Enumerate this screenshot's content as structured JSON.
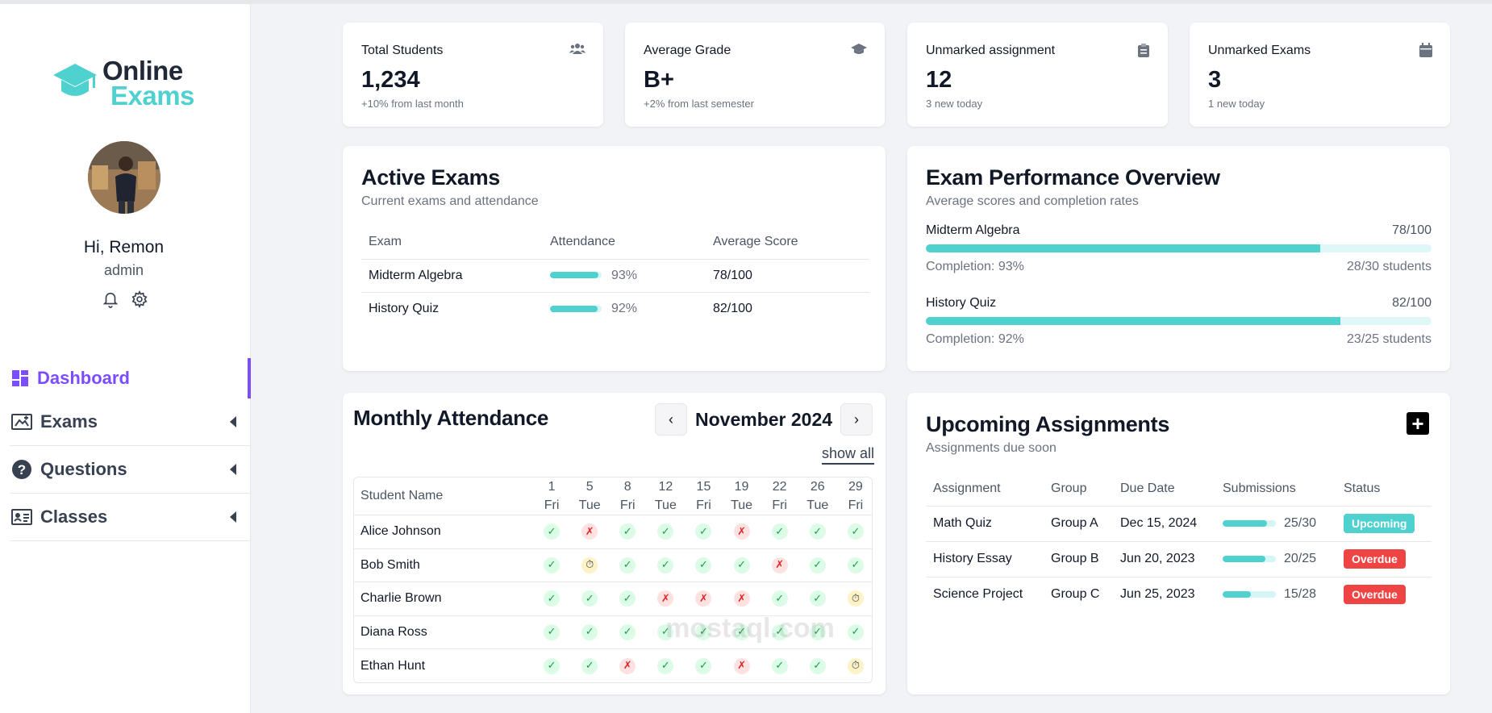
{
  "logo": {
    "line1": "Online",
    "line2": "Exams"
  },
  "user": {
    "greeting": "Hi, Remon",
    "role": "admin"
  },
  "nav": [
    {
      "label": "Dashboard",
      "icon": "dashboard-icon"
    },
    {
      "label": "Exams",
      "icon": "exams-icon"
    },
    {
      "label": "Questions",
      "icon": "question-icon"
    },
    {
      "label": "Classes",
      "icon": "classes-icon"
    }
  ],
  "stats": [
    {
      "title": "Total Students",
      "value": "1,234",
      "sub": "+10% from last month",
      "icon": "users-icon"
    },
    {
      "title": "Average Grade",
      "value": "B+",
      "sub": "+2% from last semester",
      "icon": "graduation-cap-icon"
    },
    {
      "title": "Unmarked assignment",
      "value": "12",
      "sub": "3 new today",
      "icon": "clipboard-icon"
    },
    {
      "title": "Unmarked Exams",
      "value": "3",
      "sub": "1 new today",
      "icon": "calendar-icon"
    }
  ],
  "active_exams": {
    "title": "Active Exams",
    "subtitle": "Current exams and attendance",
    "headers": [
      "Exam",
      "Attendance",
      "Average Score"
    ],
    "rows": [
      {
        "exam": "Midterm Algebra",
        "attendance": 93,
        "attendance_label": "93%",
        "score": "78/100"
      },
      {
        "exam": "History Quiz",
        "attendance": 92,
        "attendance_label": "92%",
        "score": "82/100"
      }
    ]
  },
  "performance": {
    "title": "Exam Performance Overview",
    "subtitle": "Average scores and completion rates",
    "rows": [
      {
        "name": "Midterm Algebra",
        "score": "78/100",
        "score_pct": 78,
        "completion": "Completion: 93%",
        "students": "28/30 students"
      },
      {
        "name": "History Quiz",
        "score": "82/100",
        "score_pct": 82,
        "completion": "Completion: 92%",
        "students": "23/25 students"
      }
    ]
  },
  "attendance": {
    "title": "Monthly Attendance",
    "month": "November 2024",
    "prev": "‹",
    "next": "›",
    "show_all": "show all",
    "name_header": "Student Name",
    "days": [
      {
        "num": "1",
        "dow": "Fri"
      },
      {
        "num": "5",
        "dow": "Tue"
      },
      {
        "num": "8",
        "dow": "Fri"
      },
      {
        "num": "12",
        "dow": "Tue"
      },
      {
        "num": "15",
        "dow": "Fri"
      },
      {
        "num": "19",
        "dow": "Tue"
      },
      {
        "num": "22",
        "dow": "Fri"
      },
      {
        "num": "26",
        "dow": "Tue"
      },
      {
        "num": "29",
        "dow": "Fri"
      }
    ],
    "students": [
      {
        "name": "Alice Johnson",
        "marks": [
          "P",
          "A",
          "P",
          "P",
          "P",
          "A",
          "P",
          "P",
          "P"
        ]
      },
      {
        "name": "Bob Smith",
        "marks": [
          "P",
          "L",
          "P",
          "P",
          "P",
          "P",
          "A",
          "P",
          "P"
        ]
      },
      {
        "name": "Charlie Brown",
        "marks": [
          "P",
          "P",
          "P",
          "A",
          "A",
          "A",
          "P",
          "P",
          "L"
        ]
      },
      {
        "name": "Diana Ross",
        "marks": [
          "P",
          "P",
          "P",
          "P",
          "P",
          "P",
          "P",
          "P",
          "P"
        ]
      },
      {
        "name": "Ethan Hunt",
        "marks": [
          "P",
          "P",
          "A",
          "P",
          "P",
          "A",
          "P",
          "P",
          "L"
        ]
      }
    ]
  },
  "assignments": {
    "title": "Upcoming Assignments",
    "subtitle": "Assignments due soon",
    "add_label": "+",
    "headers": [
      "Assignment",
      "Group",
      "Due Date",
      "Submissions",
      "Status"
    ],
    "rows": [
      {
        "name": "Math Quiz",
        "group": "Group A",
        "due": "Dec 15, 2024",
        "submitted": 25,
        "total": 30,
        "count": "25/30",
        "status": "Upcoming",
        "status_type": "upcoming"
      },
      {
        "name": "History Essay",
        "group": "Group B",
        "due": "Jun 20, 2023",
        "submitted": 20,
        "total": 25,
        "count": "20/25",
        "status": "Overdue",
        "status_type": "overdue"
      },
      {
        "name": "Science Project",
        "group": "Group C",
        "due": "Jun 25, 2023",
        "submitted": 15,
        "total": 28,
        "count": "15/28",
        "status": "Overdue",
        "status_type": "overdue"
      }
    ]
  },
  "watermark": "mostaql.com",
  "colors": {
    "accent": "#7c4dff",
    "teal": "#4fd1d0",
    "overdue": "#ef4444"
  }
}
